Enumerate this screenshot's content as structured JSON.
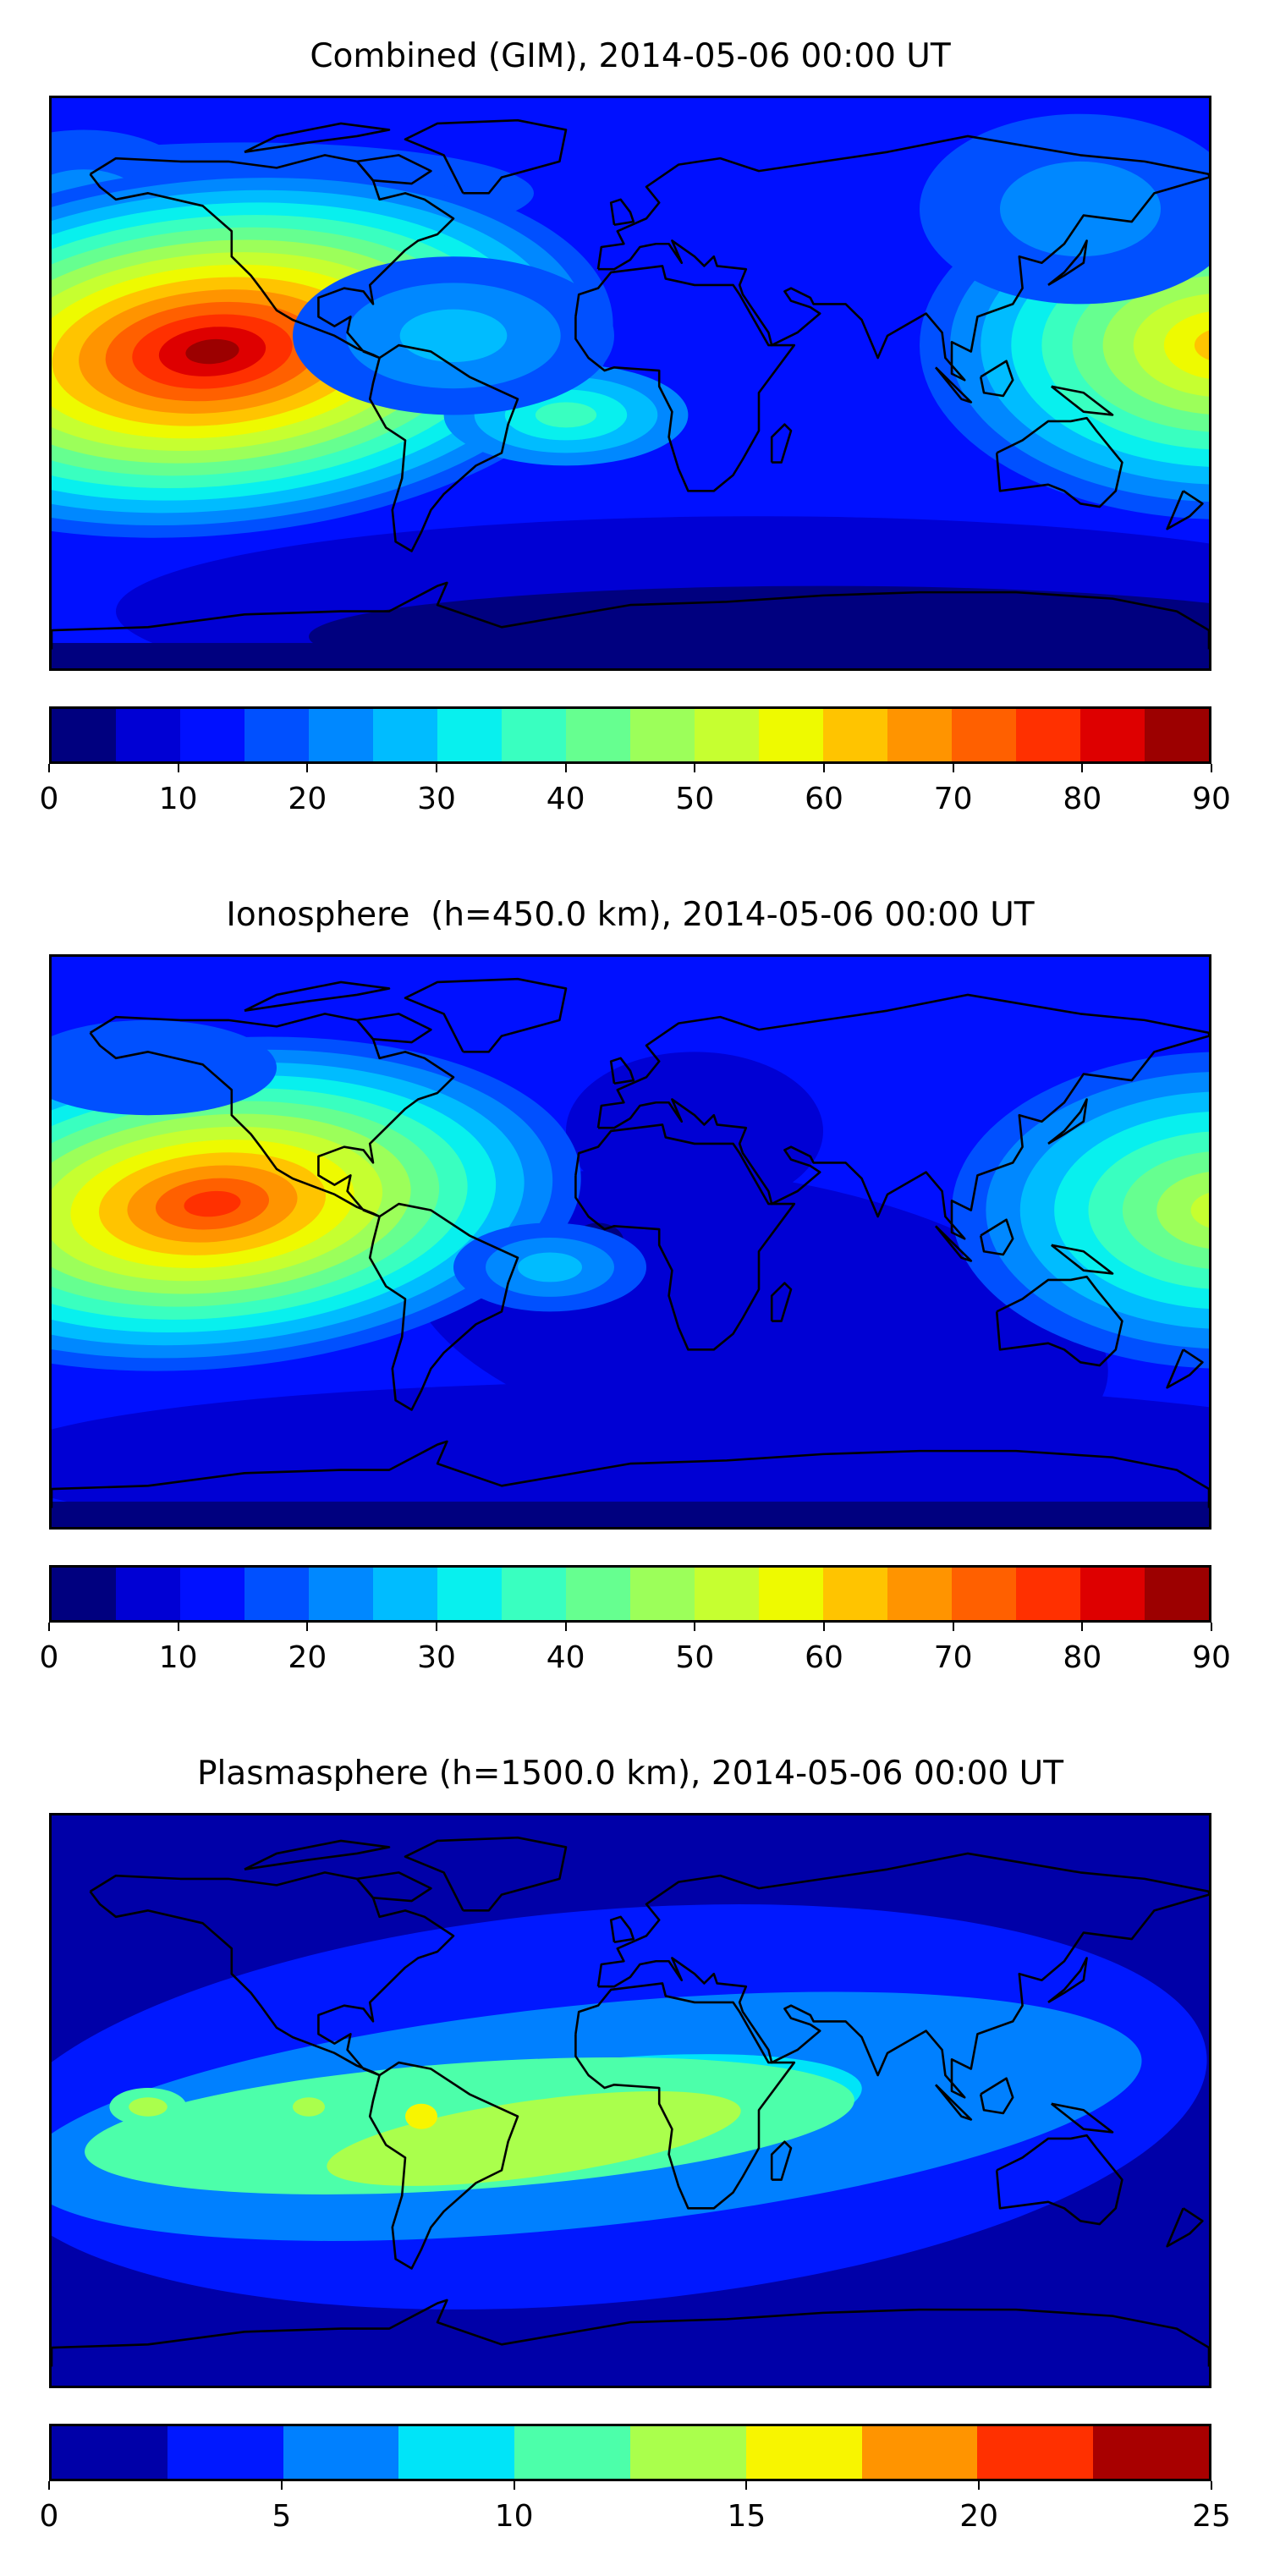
{
  "chart_data": [
    {
      "type": "heatmap",
      "title": "Combined (GIM), 2014-05-06 00:00 UT",
      "projection": "equirectangular world map, lon -180..180, lat -90..90",
      "colorbar": {
        "levels_start": 0,
        "levels_step": 5,
        "levels_end": 90,
        "ticks": [
          0,
          10,
          20,
          30,
          40,
          50,
          60,
          70,
          80,
          90
        ],
        "colors": [
          "#00007f",
          "#0000d4",
          "#0010ff",
          "#0050ff",
          "#0088ff",
          "#00bcff",
          "#08f0ee",
          "#39ffc0",
          "#66ff90",
          "#9cff5a",
          "#c6ff30",
          "#eefa00",
          "#ffc400",
          "#ff9400",
          "#ff6000",
          "#ff3000",
          "#de0000",
          "#9c0000"
        ]
      },
      "features": [
        {
          "name": "Pacific maximum",
          "lon": -130,
          "lat": 10,
          "max_level": 85
        },
        {
          "name": "West Pacific/Asia maximum",
          "lon": 180,
          "lat": 12,
          "max_level": 60
        },
        {
          "name": "South Atlantic secondary maximum",
          "lon": -20,
          "lat": -10,
          "max_level": 35
        }
      ]
    },
    {
      "type": "heatmap",
      "title": "Ionosphere  (h=450.0 km), 2014-05-06 00:00 UT",
      "projection": "equirectangular world map, lon -180..180, lat -90..90",
      "colorbar": {
        "levels_start": 0,
        "levels_step": 5,
        "levels_end": 90,
        "ticks": [
          0,
          10,
          20,
          30,
          40,
          50,
          60,
          70,
          80,
          90
        ],
        "colors": [
          "#00007f",
          "#0000d4",
          "#0010ff",
          "#0050ff",
          "#0088ff",
          "#00bcff",
          "#08f0ee",
          "#39ffc0",
          "#66ff90",
          "#9cff5a",
          "#c6ff30",
          "#eefa00",
          "#ffc400",
          "#ff9400",
          "#ff6000",
          "#ff3000",
          "#de0000",
          "#9c0000"
        ]
      },
      "features": [
        {
          "name": "Pacific maximum",
          "lon": -130,
          "lat": 12,
          "max_level": 75
        },
        {
          "name": "West Pacific/Asia maximum",
          "lon": 180,
          "lat": 10,
          "max_level": 50
        },
        {
          "name": "South Atlantic secondary maximum",
          "lon": -25,
          "lat": -8,
          "max_level": 25
        }
      ]
    },
    {
      "type": "heatmap",
      "title": "Plasmasphere (h=1500.0 km), 2014-05-06 00:00 UT",
      "projection": "equirectangular world map, lon -180..180, lat -90..90",
      "colorbar": {
        "levels_start": 0,
        "levels_step": 2.5,
        "levels_end": 25,
        "ticks": [
          0,
          5,
          10,
          15,
          20,
          25
        ],
        "colors": [
          "#0000a8",
          "#0018ff",
          "#0080ff",
          "#00e4f8",
          "#4cffaa",
          "#aaff4c",
          "#f8f500",
          "#ff9400",
          "#ff3000",
          "#a80000"
        ]
      },
      "features": [
        {
          "name": "Equatorial band maximum (South America)",
          "lon": -65,
          "lat": -5,
          "max_level": 15
        }
      ]
    }
  ]
}
